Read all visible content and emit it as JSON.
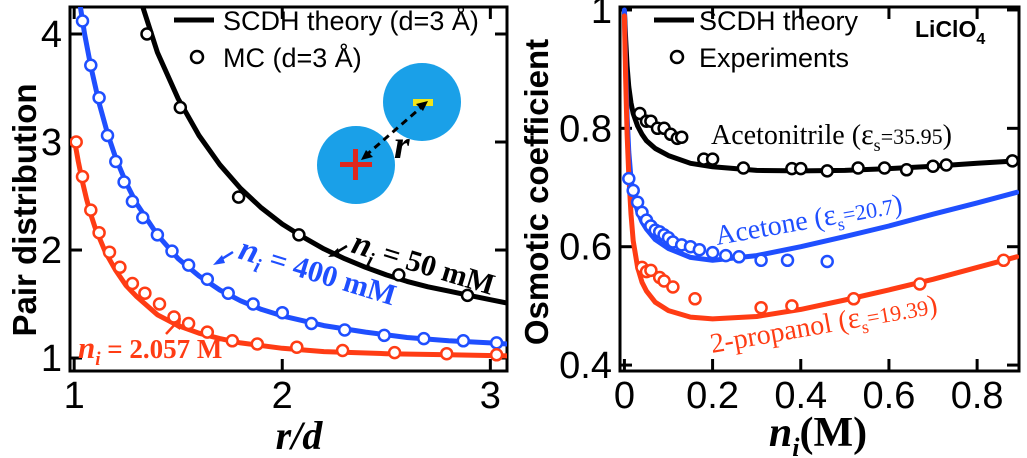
{
  "chart_data": [
    {
      "type": "line",
      "panel": "left",
      "xlabel": "r/d",
      "ylabel": "Pair distribution",
      "xlim": [
        0.98,
        3.08
      ],
      "ylim": [
        0.88,
        4.25
      ],
      "xticks": [
        "1",
        "2",
        "3"
      ],
      "xtick_values": [
        1,
        2,
        3
      ],
      "yticks": [
        "1",
        "2",
        "3",
        "4"
      ],
      "ytick_values": [
        1,
        2,
        3,
        4
      ],
      "legend": [
        {
          "label": "SCDH theory (d=3 Å)",
          "kind": "line"
        },
        {
          "label": "MC (d=3 Å)",
          "kind": "marker"
        }
      ],
      "inset": {
        "distance_label": "r",
        "plus_sign": "+",
        "minus_sign": "−"
      },
      "series": [
        {
          "name": "50 mM",
          "color": "#000000",
          "label": {
            "var": "n",
            "sub": "i",
            "text": " = 50 mM"
          },
          "theory": [
            [
              1.33,
              4.25
            ],
            [
              1.4,
              3.83
            ],
            [
              1.5,
              3.4
            ],
            [
              1.6,
              3.06
            ],
            [
              1.7,
              2.79
            ],
            [
              1.8,
              2.57
            ],
            [
              1.9,
              2.39
            ],
            [
              2.0,
              2.24
            ],
            [
              2.1,
              2.12
            ],
            [
              2.2,
              2.01
            ],
            [
              2.3,
              1.92
            ],
            [
              2.4,
              1.84
            ],
            [
              2.5,
              1.77
            ],
            [
              2.6,
              1.71
            ],
            [
              2.7,
              1.66
            ],
            [
              2.8,
              1.62
            ],
            [
              2.9,
              1.58
            ],
            [
              3.0,
              1.54
            ],
            [
              3.08,
              1.51
            ]
          ],
          "mc": [
            [
              1.35,
              4.0
            ],
            [
              1.51,
              3.32
            ],
            [
              1.79,
              2.49
            ],
            [
              2.08,
              2.14
            ],
            [
              2.56,
              1.77
            ],
            [
              2.89,
              1.58
            ]
          ]
        },
        {
          "name": "400 mM",
          "color": "#1f4fff",
          "label": {
            "var": "n",
            "sub": "i",
            "text": " = 400 mM"
          },
          "theory": [
            [
              1.03,
              4.25
            ],
            [
              1.05,
              4.0
            ],
            [
              1.08,
              3.7
            ],
            [
              1.12,
              3.36
            ],
            [
              1.16,
              3.08
            ],
            [
              1.2,
              2.85
            ],
            [
              1.25,
              2.62
            ],
            [
              1.3,
              2.43
            ],
            [
              1.4,
              2.14
            ],
            [
              1.5,
              1.92
            ],
            [
              1.6,
              1.76
            ],
            [
              1.7,
              1.63
            ],
            [
              1.8,
              1.53
            ],
            [
              1.9,
              1.45
            ],
            [
              2.0,
              1.39
            ],
            [
              2.2,
              1.3
            ],
            [
              2.4,
              1.24
            ],
            [
              2.6,
              1.19
            ],
            [
              2.8,
              1.16
            ],
            [
              3.0,
              1.14
            ],
            [
              3.08,
              1.13
            ]
          ],
          "mc": [
            [
              1.04,
              4.12
            ],
            [
              1.08,
              3.71
            ],
            [
              1.12,
              3.41
            ],
            [
              1.16,
              3.06
            ],
            [
              1.2,
              2.82
            ],
            [
              1.24,
              2.63
            ],
            [
              1.28,
              2.45
            ],
            [
              1.33,
              2.3
            ],
            [
              1.4,
              2.14
            ],
            [
              1.47,
              1.99
            ],
            [
              1.55,
              1.86
            ],
            [
              1.64,
              1.73
            ],
            [
              1.74,
              1.6
            ],
            [
              1.86,
              1.5
            ],
            [
              2.0,
              1.42
            ],
            [
              2.14,
              1.32
            ],
            [
              2.3,
              1.26
            ],
            [
              2.49,
              1.21
            ],
            [
              2.68,
              1.18
            ],
            [
              2.87,
              1.16
            ],
            [
              3.03,
              1.14
            ]
          ]
        },
        {
          "name": "2.057 M",
          "color": "#ff3c14",
          "label": {
            "var": "n",
            "sub": "i",
            "text": " = 2.057 M"
          },
          "theory": [
            [
              1.0,
              3.03
            ],
            [
              1.02,
              2.82
            ],
            [
              1.04,
              2.63
            ],
            [
              1.06,
              2.47
            ],
            [
              1.08,
              2.33
            ],
            [
              1.1,
              2.21
            ],
            [
              1.15,
              1.98
            ],
            [
              1.2,
              1.81
            ],
            [
              1.25,
              1.67
            ],
            [
              1.3,
              1.57
            ],
            [
              1.4,
              1.4
            ],
            [
              1.5,
              1.3
            ],
            [
              1.6,
              1.23
            ],
            [
              1.7,
              1.18
            ],
            [
              1.8,
              1.14
            ],
            [
              2.0,
              1.09
            ],
            [
              2.2,
              1.06
            ],
            [
              2.5,
              1.04
            ],
            [
              2.8,
              1.03
            ],
            [
              3.08,
              1.02
            ]
          ],
          "mc": [
            [
              1.01,
              3.0
            ],
            [
              1.04,
              2.68
            ],
            [
              1.08,
              2.37
            ],
            [
              1.12,
              2.16
            ],
            [
              1.17,
              1.98
            ],
            [
              1.22,
              1.84
            ],
            [
              1.28,
              1.69
            ],
            [
              1.34,
              1.6
            ],
            [
              1.41,
              1.5
            ],
            [
              1.48,
              1.38
            ],
            [
              1.55,
              1.32
            ],
            [
              1.64,
              1.24
            ],
            [
              1.76,
              1.16
            ],
            [
              1.88,
              1.13
            ],
            [
              2.07,
              1.1
            ],
            [
              2.29,
              1.07
            ],
            [
              2.54,
              1.05
            ],
            [
              2.79,
              1.04
            ],
            [
              3.03,
              1.03
            ]
          ]
        }
      ]
    },
    {
      "type": "line",
      "panel": "right",
      "title": "LiClO4",
      "title_main": "LiClO",
      "title_sub": "4",
      "xlabel_var": "n",
      "xlabel_sub": "i",
      "xlabel_unit": "(M)",
      "ylabel": "Osmotic coefficient",
      "xlim": [
        -0.01,
        0.895
      ],
      "ylim": [
        0.39,
        1.005
      ],
      "xticks": [
        "0",
        "0.2",
        "0.4",
        "0.6",
        "0.8"
      ],
      "xtick_values": [
        0,
        0.2,
        0.4,
        0.6,
        0.8
      ],
      "yticks": [
        "0.4",
        "0.6",
        "0.8",
        "1"
      ],
      "ytick_values": [
        0.4,
        0.6,
        0.8,
        1.0
      ],
      "legend": [
        {
          "label": "SCDH theory",
          "kind": "line"
        },
        {
          "label": "Experiments",
          "kind": "marker"
        }
      ],
      "series": [
        {
          "name": "Acetonitrile",
          "color": "#000000",
          "label": {
            "name": "Acetonitrile",
            "symbol": "ε",
            "sub": "s",
            "value": "=35.95"
          },
          "theory": [
            [
              0.0,
              1.0
            ],
            [
              0.003,
              0.95
            ],
            [
              0.006,
              0.905
            ],
            [
              0.01,
              0.87
            ],
            [
              0.015,
              0.843
            ],
            [
              0.02,
              0.825
            ],
            [
              0.03,
              0.804
            ],
            [
              0.04,
              0.79
            ],
            [
              0.05,
              0.779
            ],
            [
              0.07,
              0.766
            ],
            [
              0.1,
              0.754
            ],
            [
              0.15,
              0.741
            ],
            [
              0.2,
              0.735
            ],
            [
              0.3,
              0.729
            ],
            [
              0.4,
              0.728
            ],
            [
              0.5,
              0.729
            ],
            [
              0.6,
              0.732
            ],
            [
              0.7,
              0.736
            ],
            [
              0.8,
              0.741
            ],
            [
              0.89,
              0.745
            ]
          ],
          "experiments": [
            [
              0.035,
              0.825
            ],
            [
              0.05,
              0.812
            ],
            [
              0.06,
              0.812
            ],
            [
              0.075,
              0.8
            ],
            [
              0.09,
              0.8
            ],
            [
              0.105,
              0.79
            ],
            [
              0.12,
              0.783
            ],
            [
              0.13,
              0.785
            ],
            [
              0.18,
              0.748
            ],
            [
              0.2,
              0.748
            ],
            [
              0.27,
              0.733
            ],
            [
              0.38,
              0.732
            ],
            [
              0.4,
              0.732
            ],
            [
              0.46,
              0.728
            ],
            [
              0.53,
              0.733
            ],
            [
              0.59,
              0.733
            ],
            [
              0.64,
              0.73
            ],
            [
              0.7,
              0.736
            ],
            [
              0.73,
              0.738
            ],
            [
              0.88,
              0.745
            ]
          ]
        },
        {
          "name": "Acetone",
          "color": "#1f4fff",
          "label": {
            "name": "Acetone",
            "symbol": "ε",
            "sub": "s",
            "value": "=20.7"
          },
          "theory": [
            [
              0.0,
              1.0
            ],
            [
              0.003,
              0.9
            ],
            [
              0.006,
              0.82
            ],
            [
              0.01,
              0.76
            ],
            [
              0.015,
              0.715
            ],
            [
              0.02,
              0.688
            ],
            [
              0.03,
              0.66
            ],
            [
              0.04,
              0.642
            ],
            [
              0.05,
              0.63
            ],
            [
              0.07,
              0.612
            ],
            [
              0.1,
              0.597
            ],
            [
              0.15,
              0.582
            ],
            [
              0.2,
              0.577
            ],
            [
              0.3,
              0.585
            ],
            [
              0.4,
              0.6
            ],
            [
              0.5,
              0.617
            ],
            [
              0.6,
              0.635
            ],
            [
              0.7,
              0.655
            ],
            [
              0.8,
              0.674
            ],
            [
              0.89,
              0.692
            ]
          ],
          "experiments": [
            [
              0.01,
              0.715
            ],
            [
              0.02,
              0.695
            ],
            [
              0.03,
              0.675
            ],
            [
              0.04,
              0.658
            ],
            [
              0.05,
              0.645
            ],
            [
              0.06,
              0.635
            ],
            [
              0.07,
              0.628
            ],
            [
              0.08,
              0.625
            ],
            [
              0.09,
              0.62
            ],
            [
              0.1,
              0.615
            ],
            [
              0.11,
              0.608
            ],
            [
              0.13,
              0.603
            ],
            [
              0.15,
              0.6
            ],
            [
              0.17,
              0.595
            ],
            [
              0.2,
              0.59
            ],
            [
              0.23,
              0.585
            ],
            [
              0.26,
              0.583
            ],
            [
              0.31,
              0.577
            ],
            [
              0.37,
              0.577
            ],
            [
              0.46,
              0.575
            ]
          ]
        },
        {
          "name": "2-propanol",
          "color": "#ff3c14",
          "label": {
            "name": "2-propanol",
            "symbol": "ε",
            "sub": "s",
            "value": "=19.39"
          },
          "theory": [
            [
              0.0,
              0.99
            ],
            [
              0.003,
              0.88
            ],
            [
              0.006,
              0.79
            ],
            [
              0.01,
              0.72
            ],
            [
              0.015,
              0.655
            ],
            [
              0.02,
              0.61
            ],
            [
              0.03,
              0.565
            ],
            [
              0.04,
              0.54
            ],
            [
              0.05,
              0.525
            ],
            [
              0.07,
              0.506
            ],
            [
              0.1,
              0.492
            ],
            [
              0.15,
              0.481
            ],
            [
              0.2,
              0.478
            ],
            [
              0.3,
              0.482
            ],
            [
              0.4,
              0.494
            ],
            [
              0.5,
              0.51
            ],
            [
              0.6,
              0.527
            ],
            [
              0.7,
              0.545
            ],
            [
              0.8,
              0.565
            ],
            [
              0.89,
              0.583
            ]
          ],
          "experiments": [
            [
              0.04,
              0.565
            ],
            [
              0.05,
              0.558
            ],
            [
              0.06,
              0.56
            ],
            [
              0.08,
              0.548
            ],
            [
              0.09,
              0.542
            ],
            [
              0.11,
              0.532
            ],
            [
              0.16,
              0.512
            ],
            [
              0.31,
              0.497
            ],
            [
              0.38,
              0.5
            ],
            [
              0.52,
              0.512
            ],
            [
              0.67,
              0.537
            ],
            [
              0.86,
              0.577
            ]
          ]
        }
      ]
    }
  ]
}
